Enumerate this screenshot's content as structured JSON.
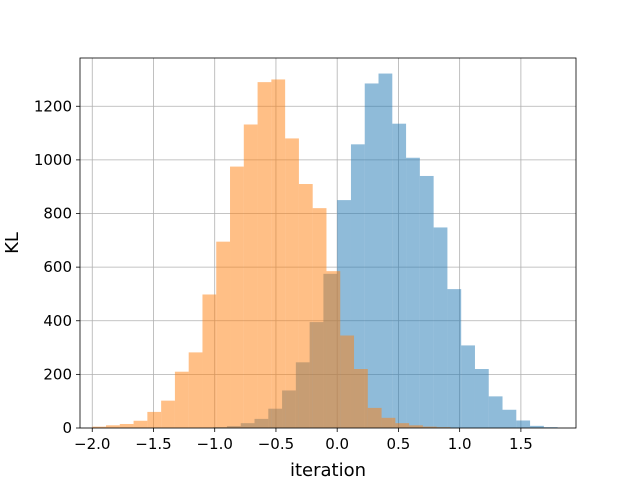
{
  "chart_data": {
    "type": "histogram",
    "title": "",
    "xlabel": "iteration",
    "ylabel": "KL",
    "xlim": [
      -2.1,
      1.95
    ],
    "ylim": [
      0,
      1380
    ],
    "grid": true,
    "xticks": [
      -2.0,
      -1.5,
      -1.0,
      -0.5,
      0.0,
      0.5,
      1.0,
      1.5
    ],
    "xtick_labels": [
      "−2.0",
      "−1.5",
      "−1.0",
      "−0.5",
      "0.0",
      "0.5",
      "1.0",
      "1.5"
    ],
    "yticks": [
      0,
      200,
      400,
      600,
      800,
      1000,
      1200
    ],
    "ytick_labels": [
      "0",
      "200",
      "400",
      "600",
      "800",
      "1000",
      "1200"
    ],
    "series": [
      {
        "color": "#1f77b4",
        "opacity": 0.5,
        "bin_width": 0.1125,
        "bins": [
          {
            "x0": -1.125,
            "count": 1
          },
          {
            "x0": -1.0125,
            "count": 3
          },
          {
            "x0": -0.9,
            "count": 7
          },
          {
            "x0": -0.7875,
            "count": 18
          },
          {
            "x0": -0.675,
            "count": 34
          },
          {
            "x0": -0.5625,
            "count": 72
          },
          {
            "x0": -0.45,
            "count": 140
          },
          {
            "x0": -0.3375,
            "count": 245
          },
          {
            "x0": -0.225,
            "count": 395
          },
          {
            "x0": -0.1125,
            "count": 575
          },
          {
            "x0": 0.0,
            "count": 850
          },
          {
            "x0": 0.1125,
            "count": 1058
          },
          {
            "x0": 0.225,
            "count": 1285
          },
          {
            "x0": 0.3375,
            "count": 1322
          },
          {
            "x0": 0.45,
            "count": 1135
          },
          {
            "x0": 0.5625,
            "count": 1008
          },
          {
            "x0": 0.675,
            "count": 940
          },
          {
            "x0": 0.7875,
            "count": 748
          },
          {
            "x0": 0.9,
            "count": 518
          },
          {
            "x0": 1.0125,
            "count": 308
          },
          {
            "x0": 1.125,
            "count": 220
          },
          {
            "x0": 1.2375,
            "count": 118
          },
          {
            "x0": 1.35,
            "count": 68
          },
          {
            "x0": 1.4625,
            "count": 28
          },
          {
            "x0": 1.575,
            "count": 8
          },
          {
            "x0": 1.6875,
            "count": 3
          }
        ]
      },
      {
        "color": "#ff7f0e",
        "opacity": 0.5,
        "bin_width": 0.1125,
        "bins": [
          {
            "x0": -2.0,
            "count": 5
          },
          {
            "x0": -1.8875,
            "count": 10
          },
          {
            "x0": -1.775,
            "count": 15
          },
          {
            "x0": -1.6625,
            "count": 27
          },
          {
            "x0": -1.55,
            "count": 60
          },
          {
            "x0": -1.4375,
            "count": 102
          },
          {
            "x0": -1.325,
            "count": 210
          },
          {
            "x0": -1.2125,
            "count": 282
          },
          {
            "x0": -1.1,
            "count": 498
          },
          {
            "x0": -0.9875,
            "count": 695
          },
          {
            "x0": -0.875,
            "count": 975
          },
          {
            "x0": -0.7625,
            "count": 1132
          },
          {
            "x0": -0.65,
            "count": 1290
          },
          {
            "x0": -0.5375,
            "count": 1300
          },
          {
            "x0": -0.425,
            "count": 1080
          },
          {
            "x0": -0.3125,
            "count": 910
          },
          {
            "x0": -0.2,
            "count": 820
          },
          {
            "x0": -0.0875,
            "count": 585
          },
          {
            "x0": 0.025,
            "count": 345
          },
          {
            "x0": 0.1375,
            "count": 220
          },
          {
            "x0": 0.25,
            "count": 75
          },
          {
            "x0": 0.3625,
            "count": 38
          },
          {
            "x0": 0.475,
            "count": 18
          },
          {
            "x0": 0.5875,
            "count": 10
          },
          {
            "x0": 0.7,
            "count": 5
          },
          {
            "x0": 0.8125,
            "count": 3
          }
        ]
      }
    ]
  }
}
